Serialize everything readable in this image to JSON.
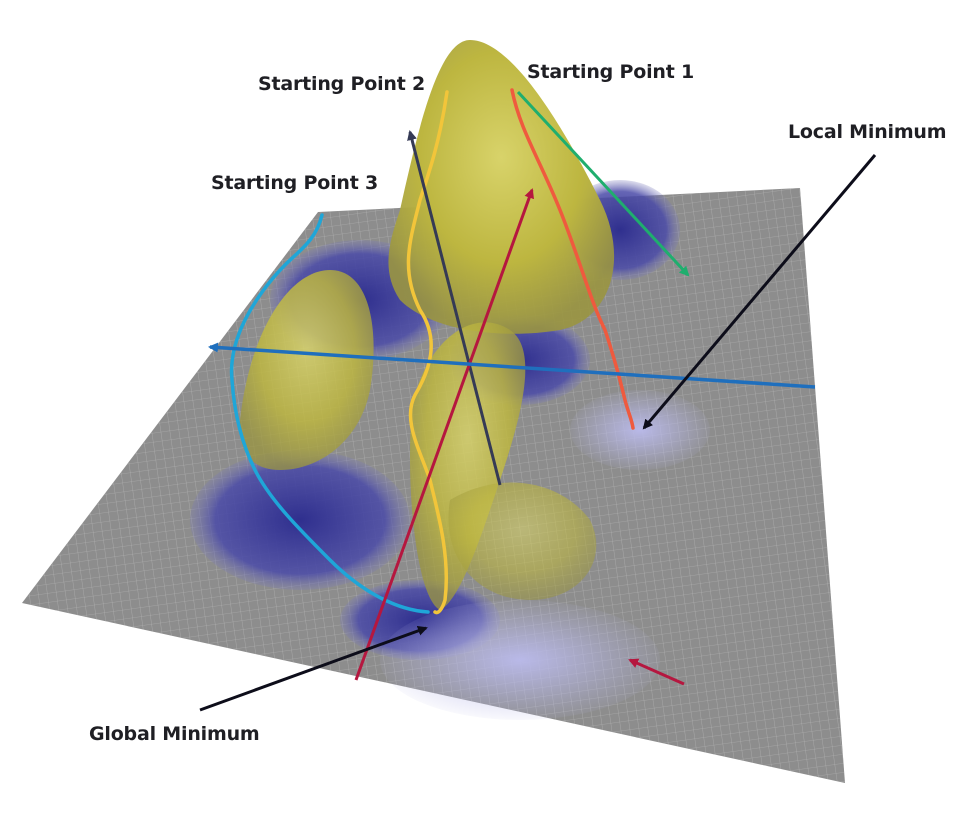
{
  "labels": {
    "start1": "Starting Point 1",
    "start2": "Starting Point 2",
    "start3": "Starting Point 3",
    "local_min": "Local Minimum",
    "global_min": "Global Minimum"
  },
  "colors": {
    "surface_gray": "#8d8d8d",
    "peak_yellow": "#c9c24a",
    "valley_blue": "#3a3a96",
    "path_start1": "#ef5a3e",
    "path_start2": "#f2c53a",
    "path_start3": "#1fa6d8",
    "arrow_navy": "#353a55",
    "arrow_crimson": "#b5173f",
    "arrow_green": "#1fae6e",
    "arrow_blue": "#1f6fbd",
    "callout_black": "#0d0d1a"
  },
  "icons": [
    "arrow-icon"
  ]
}
